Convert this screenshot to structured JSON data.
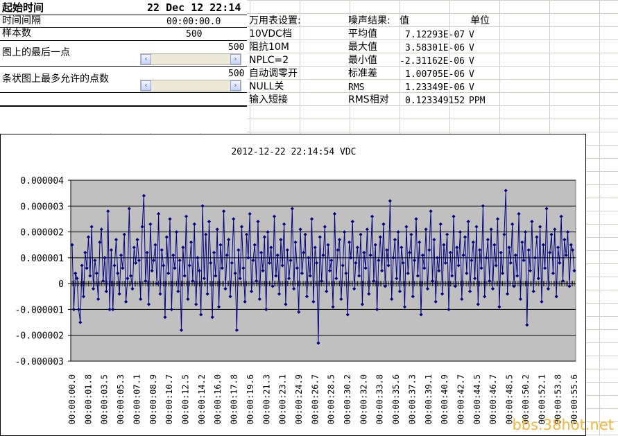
{
  "header": {
    "start_label": "起始时间",
    "start_value": "22 Dec 12 22:14"
  },
  "settings": [
    {
      "label": "时间间隔",
      "value": "00:00:00.0"
    },
    {
      "label": "样本数",
      "value": "500"
    },
    {
      "label": "图上的最后一点",
      "value": "500"
    },
    {
      "label": "条状图上最多允许的点数",
      "value": "500"
    }
  ],
  "meter": {
    "title": "万用表设置:",
    "items": [
      "10VDC档",
      "阻抗10M",
      "NPLC=2",
      "自动调零开",
      "NULL关",
      "输入短接"
    ]
  },
  "results": {
    "title": "噪声结果:",
    "value_header": "值",
    "unit_header": "单位",
    "rows": [
      {
        "name": "平均值",
        "value": "7.12293E-07",
        "unit": "V"
      },
      {
        "name": "最大值",
        "value": "3.58301E-06",
        "unit": "V"
      },
      {
        "name": "最小值",
        "value": "-2.31162E-06",
        "unit": "V"
      },
      {
        "name": "标准差",
        "value": "1.00705E-06",
        "unit": "V"
      },
      {
        "name": "RMS",
        "value": "1.23349E-06",
        "unit": "V"
      },
      {
        "name": "RMS相对",
        "value": "0.123349152",
        "unit": "PPM"
      }
    ]
  },
  "scrollbars": {
    "left_arrow": "‹",
    "right_arrow": "›"
  },
  "chart_data": {
    "type": "line",
    "title": "2012-12-22 22:14:54 VDC",
    "ylim": [
      -3e-06,
      4e-06
    ],
    "yticks": [
      "0.000004",
      "0.000003",
      "0.000002",
      "0.000001",
      "0",
      "-0.000001",
      "-0.000002",
      "-0.000003"
    ],
    "grid": true,
    "legend": "none",
    "series_color": "#000080",
    "plot_background": "#c0c0c0",
    "xtick_labels": [
      "00:00:00.0",
      "00:00:01.8",
      "00:00:03.5",
      "00:00:05.3",
      "00:00:07.1",
      "00:00:08.9",
      "00:00:10.7",
      "00:00:12.5",
      "00:00:14.2",
      "00:00:16.0",
      "00:00:17.8",
      "00:00:19.6",
      "00:00:21.3",
      "00:00:23.1",
      "00:00:24.9",
      "00:00:26.7",
      "00:00:28.5",
      "00:00:30.2",
      "00:00:32.0",
      "00:00:33.8",
      "00:00:35.6",
      "00:00:37.3",
      "00:00:39.1",
      "00:00:40.9",
      "00:00:42.7",
      "00:00:44.5",
      "00:00:46.7",
      "00:00:48.5",
      "00:00:50.2",
      "00:00:52.1",
      "00:00:53.8",
      "00:00:55.6"
    ],
    "values": [
      1.5e-06,
      -1e-06,
      4e-07,
      2e-07,
      -1e-06,
      -1.5e-06,
      7e-07,
      -5e-07,
      1.2e-06,
      6e-07,
      1.8e-06,
      3e-07,
      2.2e-06,
      -2e-07,
      9e-07,
      4e-07,
      -6e-07,
      1.6e-06,
      2.1e-06,
      1e-07,
      1e-06,
      -3e-07,
      2.8e-06,
      -1e-06,
      1.3e-06,
      -1e-06,
      7e-07,
      1.7e-06,
      4e-07,
      -4e-07,
      1.1e-06,
      6e-07,
      1.9e-06,
      -7e-07,
      2e-07,
      2.9e-06,
      3e-07,
      -2e-07,
      1.4e-06,
      8e-07,
      1.7e-06,
      9e-07,
      -6e-07,
      2.2e-06,
      3.4e-06,
      1e-07,
      1.2e-06,
      -8e-07,
      2.3e-06,
      5e-07,
      9e-07,
      1.5e-06,
      0.0,
      2.7e-06,
      -4e-07,
      1.3e-06,
      7e-07,
      -1.3e-06,
      1.8e-06,
      4e-07,
      2.5e-06,
      -1e-06,
      1.1e-06,
      6e-07,
      2e-06,
      -3e-07,
      9e-07,
      -1.8e-06,
      1.4e-06,
      3e-07,
      2.6e-06,
      -6e-07,
      7e-07,
      1.6e-06,
      1e-07,
      2.3e-06,
      -8e-07,
      1e-06,
      5e-07,
      -1.2e-06,
      3e-06,
      2e-07,
      1.9e-06,
      -4e-07,
      2.4e-06,
      8e-07,
      -1.3e-06,
      1.2e-06,
      3e-07,
      2.1e-06,
      -9e-07,
      1.5e-06,
      6e-07,
      2.8e-06,
      -2e-07,
      1.1e-06,
      1.7e-06,
      -5e-07,
      8e-07,
      2.5e-06,
      4e-07,
      -1.8e-06,
      1.3e-06,
      2e-07,
      2.2e-06,
      6e-07,
      -7e-07,
      1.9e-06,
      1e-06,
      2.7e-06,
      -3e-07,
      9e-07,
      1.5e-06,
      1e-07,
      2.4e-06,
      -6e-07,
      1.2e-06,
      5e-07,
      1.8e-06,
      -1e-06,
      2e-06,
      8e-07,
      1.4e-06,
      -1e-07,
      2.6e-06,
      3e-07,
      1.1e-06,
      -4e-07,
      1.7e-06,
      7e-07,
      2.3e-06,
      -8e-07,
      1.3e-06,
      2e-07,
      9e-07,
      2.9e-06,
      -2e-07,
      1.6e-06,
      6e-07,
      -1.1e-06,
      2.1e-06,
      4e-07,
      1.2e-06,
      1.9e-06,
      -5e-07,
      1e-06,
      3e-07,
      2.5e-06,
      -7e-07,
      1.4e-06,
      8e-07,
      -2.3e-06,
      1.8e-06,
      1e-07,
      1.1e-06,
      2.2e-06,
      -3e-07,
      1.5e-06,
      5e-07,
      9e-07,
      -9e-07,
      2.7e-06,
      2e-07,
      1.3e-06,
      1.7e-06,
      -6e-07,
      7e-07,
      2e-06,
      4e-07,
      -1.2e-06,
      1.6e-06,
      1e-06,
      2.4e-06,
      -2e-07,
      8e-07,
      1.4e-06,
      3e-07,
      1.9e-06,
      -8e-07,
      1.2e-06,
      6e-07,
      2.1e-06,
      -4e-07,
      1.1e-06,
      2.6e-06,
      1e-07,
      1.5e-06,
      -1e-06,
      9e-07,
      1.8e-06,
      5e-07,
      2.3e-06,
      -1e-07,
      1.3e-06,
      7e-07,
      3.2e-06,
      -6e-07,
      1e-06,
      1.7e-06,
      2e-07,
      2e-06,
      -3e-07,
      1.4e-06,
      8e-07,
      -9e-07,
      2.2e-06,
      4e-07,
      1.2e-06,
      1.9e-06,
      -5e-07,
      9e-07,
      2.5e-06,
      3e-07,
      1.6e-06,
      -1.2e-06,
      1.1e-06,
      6e-07,
      2.1e-06,
      -2e-07,
      1.3e-06,
      2.8e-06,
      1e-07,
      1.7e-06,
      -7e-07,
      1e-06,
      5e-07,
      2.3e-06,
      -4e-07,
      1.5e-06,
      8e-07,
      1.9e-06,
      -1e-06,
      1.2e-06,
      3e-07,
      2.6e-06,
      -1e-07,
      1.4e-06,
      7e-07,
      2e-06,
      -6e-07,
      1.1e-06,
      1.8e-06,
      4e-07,
      2.4e-06,
      -3e-07,
      9e-07,
      1.6e-06,
      2e-07,
      2.2e-06,
      -8e-07,
      1.3e-06,
      6e-07,
      3e-06,
      -5e-07,
      1e-06,
      1.7e-06,
      1e-07,
      2.1e-06,
      -2e-07,
      1.5e-06,
      7e-07,
      2.5e-06,
      -9e-07,
      1.2e-06,
      4e-07,
      1.9e-06,
      3.6e-06,
      -4e-07,
      1.4e-06,
      8e-07,
      2.3e-06,
      -1e-07,
      1.1e-06,
      3e-07,
      2.7e-06,
      -6e-07,
      1.6e-06,
      9e-07,
      2e-06,
      -1.6e-06,
      1.3e-06,
      5e-07,
      2.4e-06,
      -3e-07,
      1e-06,
      1.8e-06,
      2e-07,
      2.2e-06,
      -7e-07,
      1.5e-06,
      6e-07,
      2.9e-06,
      -2e-07,
      1.2e-06,
      1.9e-06,
      4e-07,
      2.1e-06,
      -5e-07,
      1.4e-06,
      8e-07,
      2.6e-06,
      1e-07,
      1.7e-06,
      1.1e-06,
      2e-06,
      -1e-07,
      1.5e-06,
      1.3e-06,
      5e-07
    ],
    "marker": "diamond"
  }
}
